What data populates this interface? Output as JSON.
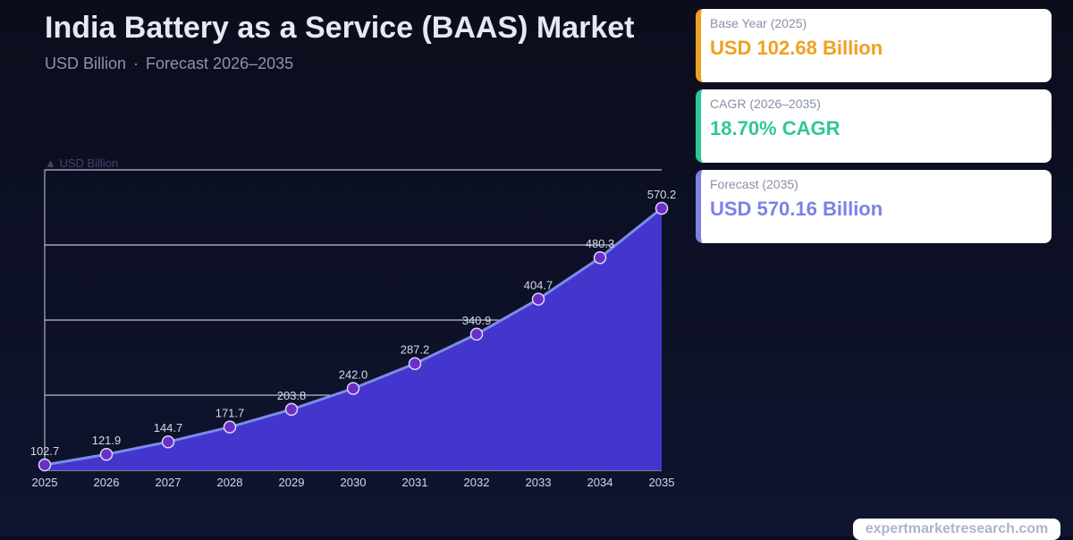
{
  "header": {
    "title": "India Battery as a Service (BAAS) Market",
    "unit": "USD Billion",
    "separator": "·",
    "forecast_label": "Forecast 2026–2035"
  },
  "cards": [
    {
      "label": "Base Year (2025)",
      "value": "USD 102.68 Billion",
      "accent": "#f0a020"
    },
    {
      "label": "CAGR (2026–2035)",
      "value": "18.70% CAGR",
      "accent": "#2fc79a"
    },
    {
      "label": "Forecast (2035)",
      "value": "USD 570.16 Billion",
      "accent": "#7b82e6"
    }
  ],
  "chart_data": {
    "type": "area",
    "ylabel": "▲ USD Billion",
    "x": [
      "2025",
      "2026",
      "2027",
      "2028",
      "2029",
      "2030",
      "2031",
      "2032",
      "2033",
      "2034",
      "2035"
    ],
    "values": [
      102.7,
      121.9,
      144.7,
      171.7,
      203.8,
      242.0,
      287.2,
      340.9,
      404.7,
      480.3,
      570.2
    ],
    "value_labels": [
      "102.7",
      "121.9",
      "144.7",
      "171.7",
      "203.8",
      "242.0",
      "287.2",
      "340.9",
      "404.7",
      "480.3",
      "570.2"
    ],
    "ylim": [
      102.7,
      570.2
    ],
    "grid": true,
    "colors": {
      "fill": "#4436cc",
      "line": "#7b8ce8",
      "marker": "#6a2fc8",
      "marker_stroke": "#dcd6f8",
      "grid": "#e8eaf2",
      "label": "#d5d8e6"
    }
  },
  "watermark": "expertmarketresearch.com"
}
